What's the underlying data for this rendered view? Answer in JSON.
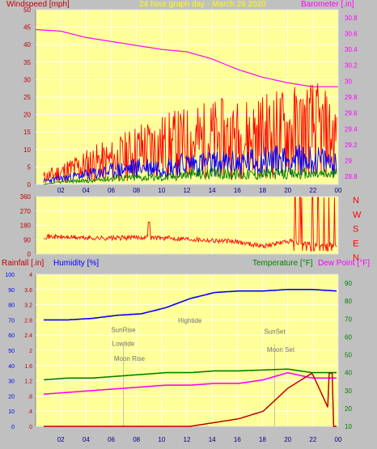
{
  "header": {
    "windspeed_label": "Windspeed [mph]",
    "title": "24 hour graph day - March 29 2020",
    "barometer_label": "Barometer [.in]"
  },
  "colors": {
    "background": "#c0c0c0",
    "plot_bg": "#ffff99",
    "grid": "#ffffff",
    "red": "#ff0000",
    "blue": "#0000ff",
    "green": "#008000",
    "magenta": "#ff00ff",
    "dark_red": "#c00000"
  },
  "time_ticks": [
    "02",
    "04",
    "06",
    "08",
    "10",
    "12",
    "14",
    "16",
    "18",
    "20",
    "22",
    "00"
  ],
  "wind_chart": {
    "left_ticks": [
      "50",
      "45",
      "40",
      "35",
      "30",
      "25",
      "20",
      "15",
      "10",
      "5",
      "0"
    ],
    "right_ticks": [
      "30.8",
      "30.6",
      "30.4",
      "30.2",
      "30",
      "29.8",
      "29.6",
      "29.4",
      "29.2",
      "29",
      "28.8"
    ]
  },
  "direction_chart": {
    "left_ticks": [
      "360",
      "270",
      "180",
      "90",
      "0"
    ],
    "compass": [
      "N",
      "W",
      "S",
      "E",
      "N"
    ]
  },
  "bottom_chart": {
    "rainfall_label": "Rainfall [.in]",
    "humidity_label": "Humidity [%]",
    "temperature_label": "Temperature [°F]",
    "dewpoint_label": "Dew Point [°F]",
    "humidity_ticks": [
      "100",
      "90",
      "80",
      "70",
      "60",
      "50",
      "40",
      "30",
      "20",
      "10",
      "0"
    ],
    "rain_ticks": [
      "4",
      "3.6",
      "3.2",
      "2.8",
      "2.4",
      "2",
      "1.6",
      "1.2",
      ".8",
      ".4",
      "0"
    ],
    "temp_ticks": [
      "90",
      "80",
      "70",
      "60",
      "50",
      "40",
      "30",
      "20",
      "10"
    ],
    "annotations": {
      "sunrise": "SunRise",
      "lowtide": "Lowtide",
      "moonrise": "Moon Rise",
      "hightide": "Hightide",
      "sunset": "SunSet",
      "moonset": "Moon Set"
    }
  },
  "chart_data": [
    {
      "type": "line",
      "title": "24 hour graph day - March 29 2020",
      "x": [
        "00",
        "02",
        "04",
        "06",
        "08",
        "10",
        "12",
        "14",
        "16",
        "18",
        "20",
        "22",
        "00"
      ],
      "ylabel": "Windspeed [mph]",
      "ylim": [
        0,
        50
      ],
      "y2label": "Barometer [.in]",
      "y2lim": [
        28.7,
        30.9
      ],
      "grid": true,
      "series": [
        {
          "axis": "y2",
          "color": "#ff00ff",
          "values": [
            30.65,
            30.63,
            30.55,
            30.5,
            30.45,
            30.4,
            30.37,
            30.28,
            30.15,
            30.05,
            29.98,
            29.93,
            29.93
          ]
        },
        {
          "axis": "y",
          "color": "#ff0000",
          "values": [
            2,
            4,
            6,
            7,
            10,
            11,
            12,
            13,
            13,
            14,
            15,
            16,
            13
          ]
        },
        {
          "axis": "y",
          "color": "#0000ff",
          "values": [
            1,
            2,
            3,
            4,
            5,
            5,
            6,
            6,
            6,
            7,
            7,
            7,
            6
          ]
        },
        {
          "axis": "y",
          "color": "#008000",
          "values": [
            0,
            1,
            1,
            2,
            2,
            2,
            3,
            3,
            3,
            3,
            3,
            3,
            3
          ]
        }
      ]
    },
    {
      "type": "line",
      "x": [
        "00",
        "02",
        "04",
        "06",
        "08",
        "10",
        "12",
        "14",
        "16",
        "18",
        "20",
        "22",
        "00"
      ],
      "ylim": [
        0,
        360
      ],
      "grid": true,
      "series": [
        {
          "color": "#ff0000",
          "values": [
            110,
            105,
            100,
            100,
            105,
            100,
            95,
            85,
            75,
            50,
            80,
            60,
            60
          ]
        }
      ]
    },
    {
      "type": "line",
      "x": [
        "00",
        "02",
        "04",
        "06",
        "08",
        "10",
        "12",
        "14",
        "16",
        "18",
        "20",
        "22",
        "00"
      ],
      "ylim": [
        0,
        100
      ],
      "y2lim": [
        10,
        95
      ],
      "grid": true,
      "series": [
        {
          "axis": "humidity",
          "color": "#0000ff",
          "values": [
            70,
            70,
            71,
            73,
            74,
            78,
            84,
            88,
            89,
            89,
            90,
            90,
            89
          ]
        },
        {
          "axis": "temperature",
          "color": "#008000",
          "values": [
            36,
            37,
            37,
            38,
            39,
            40,
            40,
            41,
            41,
            41.5,
            42,
            40,
            40
          ]
        },
        {
          "axis": "dewpoint",
          "color": "#ff00ff",
          "values": [
            28,
            29,
            30,
            31,
            32,
            33,
            33,
            34,
            34,
            36,
            40,
            37,
            37
          ]
        },
        {
          "axis": "rain",
          "color": "#c00000",
          "values": [
            0,
            0,
            0,
            0,
            0,
            0,
            0,
            0.1,
            0.2,
            0.4,
            1.0,
            1.4,
            0
          ]
        }
      ]
    }
  ]
}
